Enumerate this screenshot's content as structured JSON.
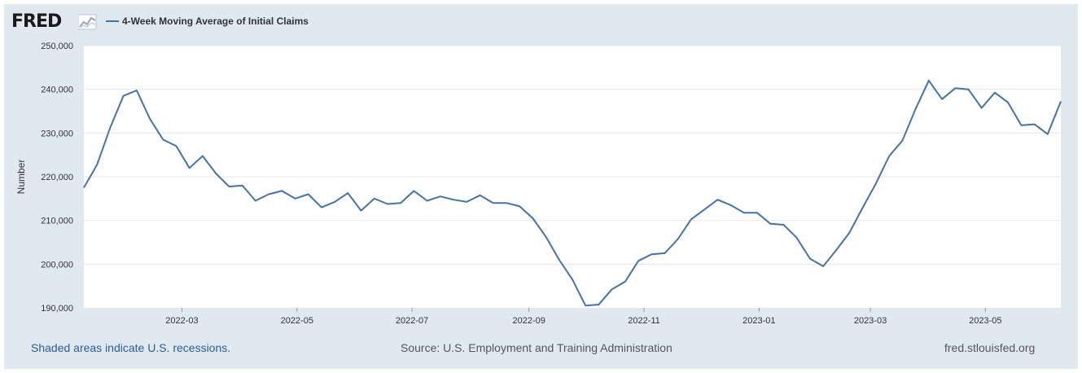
{
  "header": {
    "logo_text": "FRED",
    "legend_label": "4-Week Moving Average of Initial Claims",
    "series_color": "#4572a7"
  },
  "footer": {
    "left": "Shaded areas indicate U.S. recessions.",
    "middle": "Source: U.S. Employment and Training Administration",
    "right": "fred.stlouisfed.org"
  },
  "chart_data": {
    "type": "line",
    "title": "",
    "xlabel": "",
    "ylabel": "Number",
    "ylim": [
      190000,
      250000
    ],
    "yticks": [
      190000,
      200000,
      210000,
      220000,
      230000,
      240000,
      250000
    ],
    "ytick_labels": [
      "190,000",
      "200,000",
      "210,000",
      "220,000",
      "230,000",
      "240,000",
      "250,000"
    ],
    "xlim": [
      "2022-01-08",
      "2023-06-10"
    ],
    "xticks": [
      "2022-03-01",
      "2022-05-01",
      "2022-07-01",
      "2022-09-01",
      "2022-11-01",
      "2023-01-01",
      "2023-03-01",
      "2023-05-01"
    ],
    "xtick_labels": [
      "2022-03",
      "2022-05",
      "2022-07",
      "2022-09",
      "2022-11",
      "2023-01",
      "2023-03",
      "2023-05"
    ],
    "grid": true,
    "series": [
      {
        "name": "4-Week Moving Average of Initial Claims",
        "x": [
          "2022-01-08",
          "2022-01-15",
          "2022-01-22",
          "2022-01-29",
          "2022-02-05",
          "2022-02-12",
          "2022-02-19",
          "2022-02-26",
          "2022-03-05",
          "2022-03-12",
          "2022-03-19",
          "2022-03-26",
          "2022-04-02",
          "2022-04-09",
          "2022-04-16",
          "2022-04-23",
          "2022-04-30",
          "2022-05-07",
          "2022-05-14",
          "2022-05-21",
          "2022-05-28",
          "2022-06-04",
          "2022-06-11",
          "2022-06-18",
          "2022-06-25",
          "2022-07-02",
          "2022-07-09",
          "2022-07-16",
          "2022-07-23",
          "2022-07-30",
          "2022-08-06",
          "2022-08-13",
          "2022-08-20",
          "2022-08-27",
          "2022-09-03",
          "2022-09-10",
          "2022-09-17",
          "2022-09-24",
          "2022-10-01",
          "2022-10-08",
          "2022-10-15",
          "2022-10-22",
          "2022-10-29",
          "2022-11-05",
          "2022-11-12",
          "2022-11-19",
          "2022-11-26",
          "2022-12-03",
          "2022-12-10",
          "2022-12-17",
          "2022-12-24",
          "2022-12-31",
          "2023-01-07",
          "2023-01-14",
          "2023-01-21",
          "2023-01-28",
          "2023-02-04",
          "2023-02-11",
          "2023-02-18",
          "2023-02-25",
          "2023-03-04",
          "2023-03-11",
          "2023-03-18",
          "2023-03-25",
          "2023-04-01",
          "2023-04-08",
          "2023-04-15",
          "2023-04-22",
          "2023-04-29",
          "2023-05-06",
          "2023-05-13",
          "2023-05-20",
          "2023-05-27",
          "2023-06-03",
          "2023-06-10"
        ],
        "values": [
          217500,
          222750,
          231250,
          238500,
          239750,
          233250,
          228500,
          227000,
          222000,
          224750,
          220750,
          217750,
          218000,
          214500,
          216000,
          216750,
          215000,
          216000,
          213000,
          214250,
          216250,
          212250,
          215000,
          213750,
          214000,
          216750,
          214500,
          215500,
          214750,
          214250,
          215750,
          214000,
          214000,
          213250,
          210500,
          206250,
          201000,
          196500,
          190500,
          190750,
          194250,
          196000,
          200750,
          202250,
          202500,
          205750,
          210250,
          212500,
          214750,
          213500,
          211750,
          211750,
          209250,
          209000,
          206000,
          201250,
          199500,
          203250,
          207250,
          213000,
          218500,
          224750,
          228250,
          235500,
          242000,
          237750,
          240250,
          240000,
          235750,
          239250,
          237000,
          231750,
          232000,
          229750,
          237250
        ]
      }
    ]
  }
}
